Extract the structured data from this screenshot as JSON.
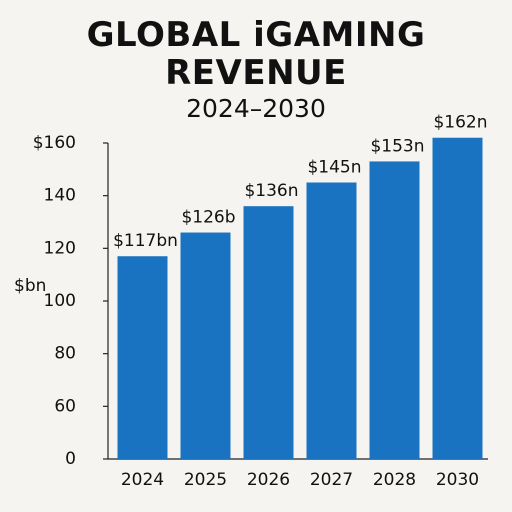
{
  "chart_data": {
    "type": "bar",
    "title": "GLOBAL iGAMING REVENUE",
    "subtitle": "2024–2030",
    "y_label": "$bn",
    "categories": [
      "2024",
      "2025",
      "2026",
      "2027",
      "2028",
      "2030"
    ],
    "values": [
      117,
      126,
      136,
      145,
      153,
      162
    ],
    "value_labels": [
      "$117bn",
      "$126b",
      "$136n",
      "$145n",
      "$153n",
      "$162n"
    ],
    "color": "#1a73c0",
    "ylim": [
      0,
      160
    ],
    "yticks": [
      0,
      60,
      80,
      100,
      120,
      140,
      {
        "value": 160,
        "label": "$160"
      }
    ],
    "grid": false
  }
}
